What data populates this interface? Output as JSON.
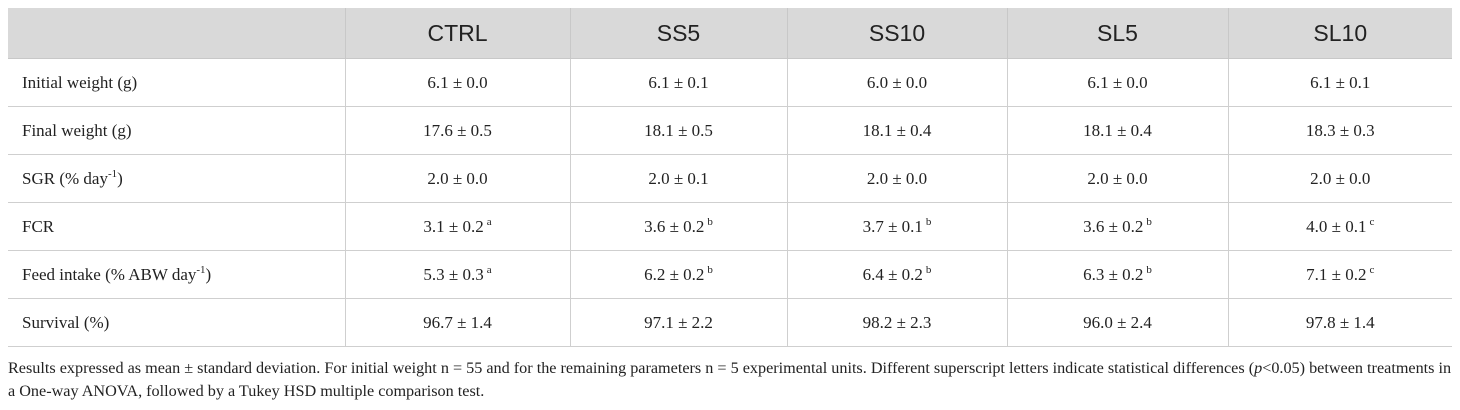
{
  "table": {
    "header": [
      "CTRL",
      "SS5",
      "SS10",
      "SL5",
      "SL10"
    ],
    "rows": [
      {
        "label": "Initial weight (g)",
        "cells": [
          "6.1 ± 0.0",
          "6.1 ± 0.1",
          "6.0 ± 0.0",
          "6.1 ± 0.0",
          "6.1 ± 0.1"
        ]
      },
      {
        "label": "Final weight (g)",
        "cells": [
          "17.6 ± 0.5",
          "18.1 ± 0.5",
          "18.1 ± 0.4",
          "18.1 ± 0.4",
          "18.3 ± 0.3"
        ]
      },
      {
        "label": {
          "before": "SGR (% day",
          "sup": "-1",
          "after": ")"
        },
        "cells": [
          "2.0 ± 0.0",
          "2.0 ± 0.1",
          "2.0 ± 0.0",
          "2.0 ± 0.0",
          "2.0 ± 0.0"
        ]
      },
      {
        "label": "FCR",
        "cells": [
          {
            "text": "3.1 ± 0.2",
            "sup": "a"
          },
          {
            "text": "3.6 ± 0.2",
            "sup": "b"
          },
          {
            "text": "3.7 ± 0.1",
            "sup": "b"
          },
          {
            "text": "3.6 ± 0.2",
            "sup": "b"
          },
          {
            "text": "4.0 ± 0.1",
            "sup": "c"
          }
        ]
      },
      {
        "label": {
          "before": "Feed intake (% ABW day",
          "sup": "-1",
          "after": ")"
        },
        "cells": [
          {
            "text": "5.3 ± 0.3",
            "sup": "a"
          },
          {
            "text": "6.2 ± 0.2",
            "sup": "b"
          },
          {
            "text": "6.4 ± 0.2",
            "sup": "b"
          },
          {
            "text": "6.3 ± 0.2",
            "sup": "b"
          },
          {
            "text": "7.1 ± 0.2",
            "sup": "c"
          }
        ]
      },
      {
        "label": "Survival (%)",
        "cells": [
          "96.7 ± 1.4",
          "97.1 ± 2.2",
          "98.2 ± 2.3",
          "96.0 ± 2.4",
          "97.8 ± 1.4"
        ]
      }
    ]
  },
  "footnote": {
    "parts": [
      {
        "text": "Results expressed as mean ± standard deviation. For initial weight n = 55 and for the remaining parameters n = 5 experimental units. Different superscript letters indicate statistical differences ("
      },
      {
        "text": "p",
        "italic": true
      },
      {
        "text": "<0.05) between treatments in a One-way ANOVA, followed by a Tukey HSD multiple comparison test."
      }
    ]
  }
}
